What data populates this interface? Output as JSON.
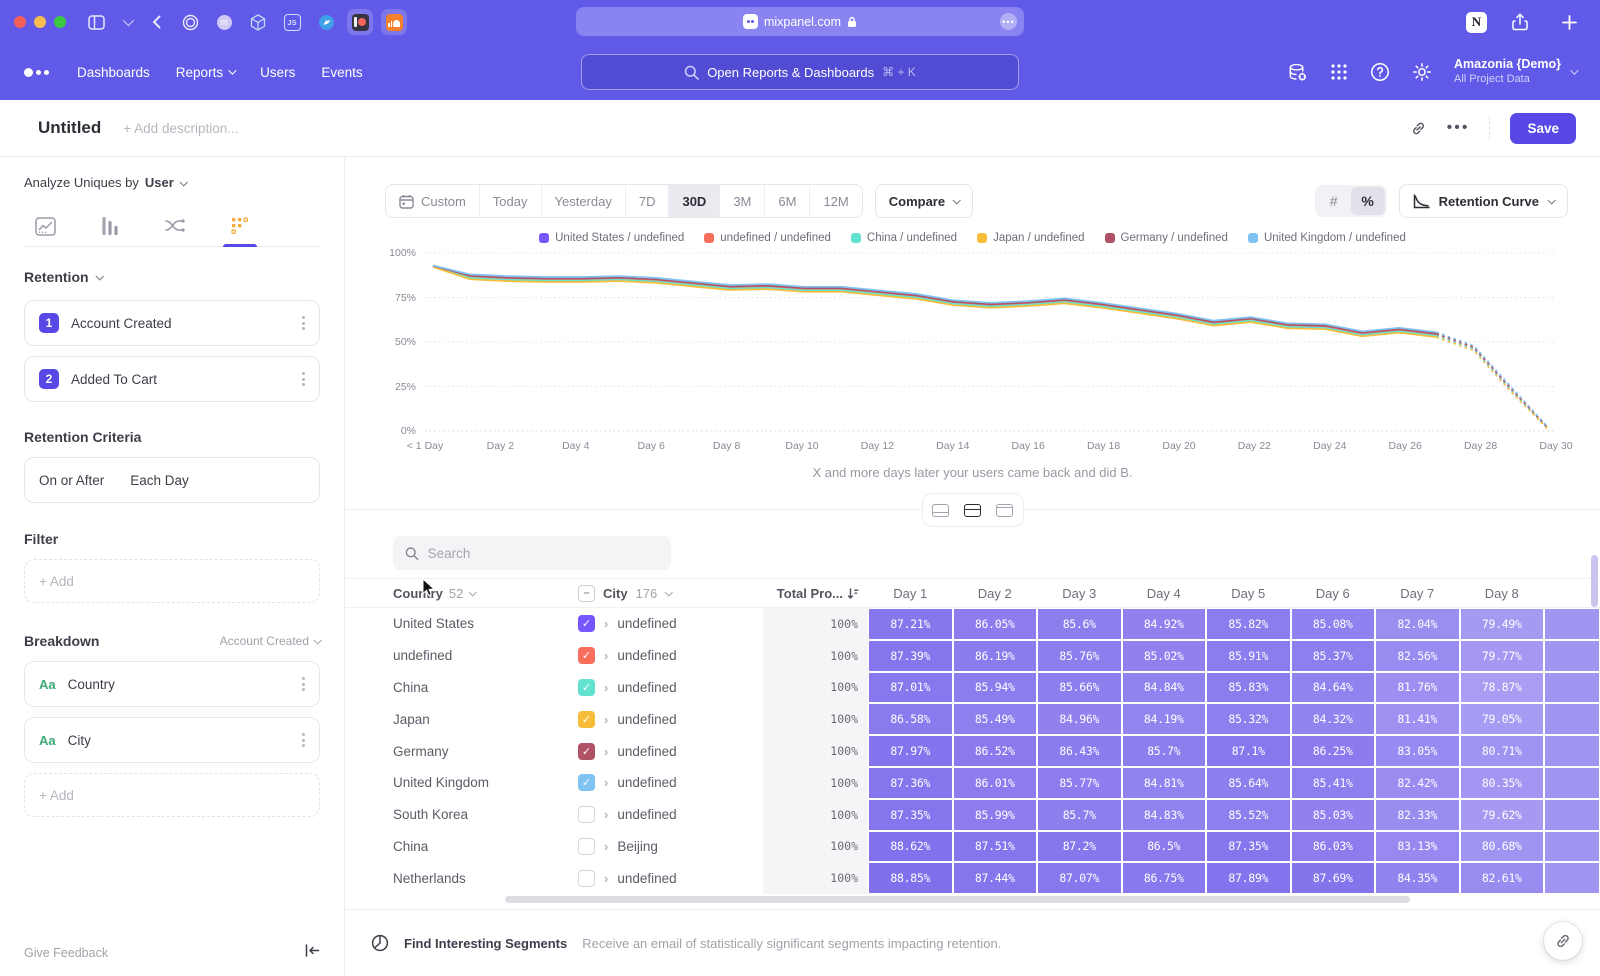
{
  "browser": {
    "url": "mixpanel.com",
    "pinned_tabs": [
      {
        "name": "onepassword",
        "label": ""
      },
      {
        "name": "profile",
        "label": "m"
      },
      {
        "name": "codesandbox",
        "label": ""
      },
      {
        "name": "javascript",
        "label": "JS"
      },
      {
        "name": "bird",
        "label": ""
      },
      {
        "name": "patreon",
        "label": ""
      },
      {
        "name": "soundcloud",
        "label": ""
      }
    ]
  },
  "nav": {
    "items": [
      "Dashboards",
      "Reports",
      "Users",
      "Events"
    ],
    "search_placeholder": "Open Reports & Dashboards",
    "search_shortcut": "⌘ + K",
    "project_name": "Amazonia {Demo}",
    "project_scope": "All Project Data"
  },
  "header": {
    "title": "Untitled",
    "description_placeholder": "+ Add description...",
    "save_label": "Save"
  },
  "sidebar": {
    "analyze_label": "Analyze Uniques by",
    "analyze_value": "User",
    "section_label": "Retention",
    "steps": [
      {
        "num": "1",
        "label": "Account Created"
      },
      {
        "num": "2",
        "label": "Added To Cart"
      }
    ],
    "criteria_label": "Retention Criteria",
    "criteria_value_1": "On or After",
    "criteria_value_2": "Each Day",
    "filter_label": "Filter",
    "add_label": "+ Add",
    "breakdown_label": "Breakdown",
    "breakdown_scope": "Account Created",
    "breakdowns": [
      {
        "type": "Aa",
        "label": "Country"
      },
      {
        "type": "Aa",
        "label": "City"
      }
    ],
    "feedback_label": "Give Feedback"
  },
  "toolbar": {
    "ranges": [
      "Custom",
      "Today",
      "Yesterday",
      "7D",
      "30D",
      "3M",
      "6M",
      "12M"
    ],
    "active_range": "30D",
    "compare_label": "Compare",
    "number_label": "#",
    "percent_label": "%",
    "active_unit": "%",
    "chart_type_label": "Retention Curve"
  },
  "chart_data": {
    "type": "line",
    "title": "",
    "xlabel": "",
    "ylabel": "",
    "ylim": [
      0,
      100
    ],
    "grid": "dotted-horizontal",
    "legend_position": "top-center",
    "y_ticks": [
      "100%",
      "75%",
      "50%",
      "25%",
      "0%"
    ],
    "x_ticks": [
      "< 1 Day",
      "Day 2",
      "Day 4",
      "Day 6",
      "Day 8",
      "Day 10",
      "Day 12",
      "Day 14",
      "Day 16",
      "Day 18",
      "Day 20",
      "Day 22",
      "Day 24",
      "Day 26",
      "Day 28",
      "Day 30"
    ],
    "x_days": [
      0,
      1,
      2,
      3,
      4,
      5,
      6,
      7,
      8,
      9,
      10,
      11,
      12,
      13,
      14,
      15,
      16,
      17,
      18,
      19,
      20,
      21,
      22,
      23,
      24,
      25,
      26,
      27,
      28,
      29,
      30
    ],
    "dashed_from_day": 27,
    "series": [
      {
        "name": "United States / undefined",
        "color": "#7856ff",
        "values": [
          92.5,
          86.4,
          85.4,
          84.9,
          84.9,
          85.4,
          84.4,
          82.4,
          80.4,
          80.9,
          79.4,
          79.4,
          77.4,
          75.4,
          71.9,
          70.4,
          71.4,
          72.9,
          70.4,
          67.4,
          64.4,
          60.4,
          62.4,
          58.9,
          58.4,
          54.4,
          56.4,
          53.9,
          46.4,
          23.4,
          1.4
        ]
      },
      {
        "name": "undefined / undefined",
        "color": "#f76e5c",
        "values": [
          92.7,
          86.8,
          85.8,
          85.3,
          85.3,
          85.8,
          84.8,
          82.8,
          80.8,
          81.3,
          79.8,
          79.8,
          77.8,
          75.8,
          72.3,
          70.8,
          71.8,
          73.3,
          70.8,
          67.8,
          64.8,
          60.8,
          62.8,
          59.3,
          58.8,
          54.8,
          56.8,
          54.3,
          46.8,
          23.8,
          1.6
        ]
      },
      {
        "name": "China / undefined",
        "color": "#63e2d1",
        "values": [
          92.4,
          86.0,
          85.0,
          84.5,
          84.5,
          85.0,
          84.0,
          82.0,
          80.0,
          80.5,
          79.0,
          79.0,
          77.0,
          75.0,
          71.5,
          70.0,
          71.0,
          72.5,
          70.0,
          67.0,
          64.0,
          60.0,
          62.0,
          58.5,
          58.0,
          54.0,
          56.0,
          53.5,
          46.0,
          23.0,
          1.2
        ]
      },
      {
        "name": "Japan / undefined",
        "color": "#f8bc3b",
        "values": [
          92.2,
          85.2,
          84.2,
          83.7,
          83.7,
          84.2,
          83.2,
          81.2,
          79.2,
          79.7,
          78.2,
          78.2,
          76.2,
          74.2,
          70.7,
          69.2,
          70.2,
          71.7,
          69.2,
          66.2,
          63.2,
          59.2,
          61.2,
          57.7,
          57.2,
          53.2,
          55.2,
          52.7,
          45.2,
          22.2,
          1.0
        ]
      },
      {
        "name": "Germany / undefined",
        "color": "#b05266",
        "values": [
          92.8,
          87.2,
          86.2,
          85.7,
          85.7,
          86.2,
          85.2,
          83.2,
          81.2,
          81.7,
          80.2,
          80.2,
          78.2,
          76.2,
          72.7,
          71.2,
          72.2,
          73.7,
          71.2,
          68.2,
          65.2,
          61.2,
          63.2,
          59.7,
          59.2,
          55.2,
          57.2,
          54.7,
          47.2,
          24.2,
          1.8
        ]
      },
      {
        "name": "United Kingdom / undefined",
        "color": "#7ec3f1",
        "values": [
          93.0,
          88.0,
          87.0,
          86.5,
          86.5,
          87.0,
          86.0,
          84.0,
          82.0,
          82.5,
          81.0,
          81.0,
          79.0,
          77.0,
          73.5,
          72.0,
          73.0,
          74.5,
          72.0,
          69.0,
          66.0,
          62.0,
          64.0,
          60.5,
          60.0,
          56.0,
          58.0,
          55.5,
          48.0,
          25.0,
          2.0
        ]
      }
    ]
  },
  "view_caption": "X and more days later your users came back and did B.",
  "table": {
    "search_placeholder": "Search",
    "country_header": "Country",
    "country_count": "52",
    "city_header": "City",
    "city_count": "176",
    "total_header": "Total Pro...",
    "day_headers": [
      "Day 1",
      "Day 2",
      "Day 3",
      "Day 4",
      "Day 5",
      "Day 6",
      "Day 7",
      "Day 8"
    ],
    "rows": [
      {
        "country": "United States",
        "checked": true,
        "color": "#7856ff",
        "city": "undefined",
        "total": "100%",
        "days": [
          "87.21%",
          "86.05%",
          "85.6%",
          "84.92%",
          "85.82%",
          "85.08%",
          "82.04%",
          "79.49%"
        ]
      },
      {
        "country": "undefined",
        "checked": true,
        "color": "#f76e5c",
        "city": "undefined",
        "total": "100%",
        "days": [
          "87.39%",
          "86.19%",
          "85.76%",
          "85.02%",
          "85.91%",
          "85.37%",
          "82.56%",
          "79.77%"
        ]
      },
      {
        "country": "China",
        "checked": true,
        "color": "#63e2d1",
        "city": "undefined",
        "total": "100%",
        "days": [
          "87.01%",
          "85.94%",
          "85.66%",
          "84.84%",
          "85.83%",
          "84.64%",
          "81.76%",
          "78.87%"
        ]
      },
      {
        "country": "Japan",
        "checked": true,
        "color": "#f8bc3b",
        "city": "undefined",
        "total": "100%",
        "days": [
          "86.58%",
          "85.49%",
          "84.96%",
          "84.19%",
          "85.32%",
          "84.32%",
          "81.41%",
          "79.05%"
        ]
      },
      {
        "country": "Germany",
        "checked": true,
        "color": "#b05266",
        "city": "undefined",
        "total": "100%",
        "days": [
          "87.97%",
          "86.52%",
          "86.43%",
          "85.7%",
          "87.1%",
          "86.25%",
          "83.05%",
          "80.71%"
        ]
      },
      {
        "country": "United Kingdom",
        "checked": true,
        "color": "#7ec3f1",
        "city": "undefined",
        "total": "100%",
        "days": [
          "87.36%",
          "86.01%",
          "85.77%",
          "84.81%",
          "85.64%",
          "85.41%",
          "82.42%",
          "80.35%"
        ]
      },
      {
        "country": "South Korea",
        "checked": false,
        "color": null,
        "city": "undefined",
        "total": "100%",
        "days": [
          "87.35%",
          "85.99%",
          "85.7%",
          "84.83%",
          "85.52%",
          "85.03%",
          "82.33%",
          "79.62%"
        ]
      },
      {
        "country": "China",
        "checked": false,
        "color": null,
        "city": "Beijing",
        "total": "100%",
        "days": [
          "88.62%",
          "87.51%",
          "87.2%",
          "86.5%",
          "87.35%",
          "86.03%",
          "83.13%",
          "80.68%"
        ]
      },
      {
        "country": "Netherlands",
        "checked": false,
        "color": null,
        "city": "undefined",
        "total": "100%",
        "days": [
          "88.85%",
          "87.44%",
          "87.07%",
          "86.75%",
          "87.89%",
          "87.69%",
          "84.35%",
          "82.61%"
        ]
      }
    ]
  },
  "footer": {
    "title": "Find Interesting Segments",
    "subtitle": "Receive an email of statistically significant segments impacting retention."
  }
}
